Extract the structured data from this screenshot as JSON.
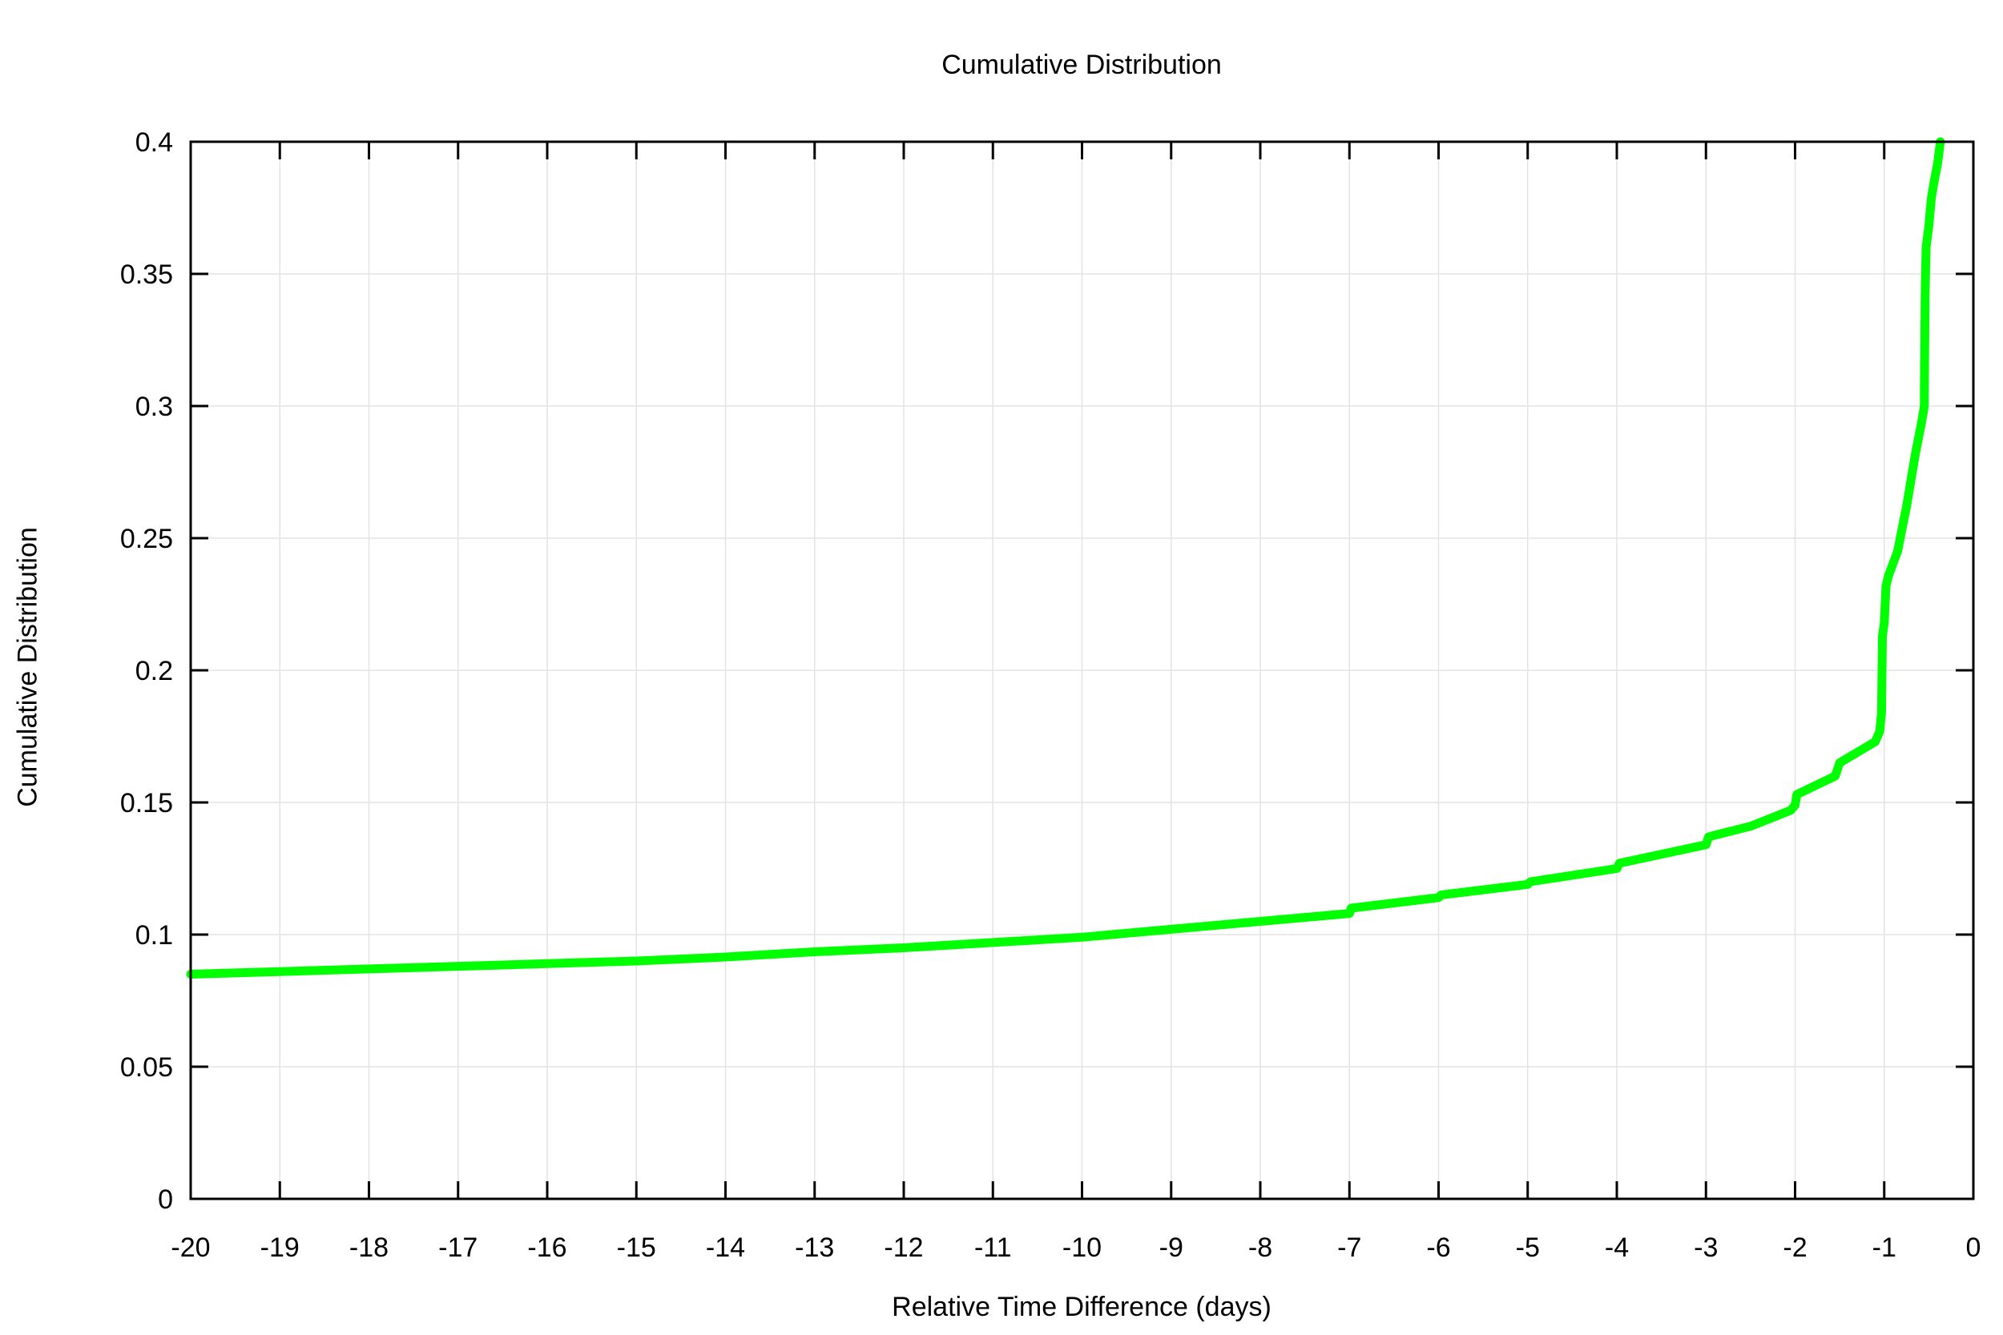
{
  "chart_data": {
    "type": "line",
    "title": "Cumulative Distribution",
    "xlabel": "Relative Time Difference (days)",
    "ylabel": "Cumulative Distribution",
    "xlim": [
      -20,
      0
    ],
    "ylim": [
      0,
      0.4
    ],
    "x_ticks": [
      "-20",
      "-19",
      "-18",
      "-17",
      "-16",
      "-15",
      "-14",
      "-13",
      "-12",
      "-11",
      "-10",
      "-9",
      "-8",
      "-7",
      "-6",
      "-5",
      "-4",
      "-3",
      "-2",
      "-1",
      "0"
    ],
    "y_ticks": [
      "0",
      "0.05",
      "0.1",
      "0.15",
      "0.2",
      "0.25",
      "0.3",
      "0.35",
      "0.4"
    ],
    "grid": true,
    "line_color": "#00ff00",
    "series": [
      {
        "x": [
          -20,
          -19,
          -18,
          -17,
          -16,
          -15,
          -14,
          -13,
          -12,
          -11,
          -10,
          -9,
          -8,
          -7,
          -6.98,
          -6,
          -5.97,
          -5,
          -4.97,
          -4,
          -3.97,
          -3,
          -2.97,
          -2.5,
          -2.05,
          -2.0,
          -1.98,
          -1.55,
          -1.5,
          -1.1,
          -1.05,
          -1.03,
          -1.02,
          -1.0,
          -0.98,
          -0.95,
          -0.85,
          -0.75,
          -0.65,
          -0.58,
          -0.55,
          -0.55,
          -0.54,
          -0.53,
          -0.5,
          -0.47,
          -0.44,
          -0.4,
          -0.37
        ],
        "y": [
          0.085,
          0.086,
          0.087,
          0.088,
          0.089,
          0.09,
          0.0915,
          0.0935,
          0.095,
          0.097,
          0.099,
          0.102,
          0.105,
          0.108,
          0.11,
          0.114,
          0.115,
          0.119,
          0.12,
          0.125,
          0.127,
          0.134,
          0.137,
          0.141,
          0.147,
          0.149,
          0.153,
          0.16,
          0.165,
          0.173,
          0.177,
          0.184,
          0.213,
          0.218,
          0.232,
          0.236,
          0.245,
          0.262,
          0.282,
          0.294,
          0.3,
          0.305,
          0.344,
          0.36,
          0.368,
          0.379,
          0.385,
          0.392,
          0.4
        ]
      }
    ]
  }
}
